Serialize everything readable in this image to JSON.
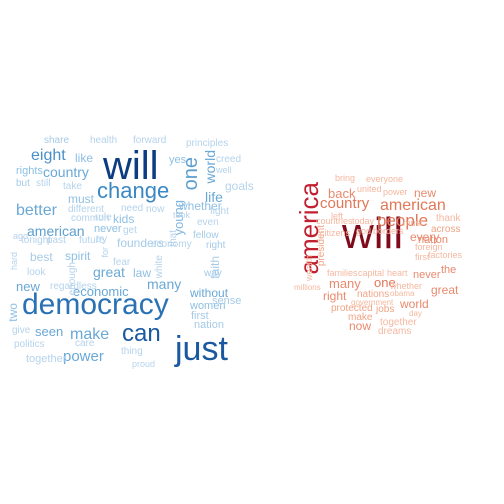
{
  "clouds": [
    {
      "name": "left",
      "words": [
        {
          "text": "will",
          "color": "#0c3d80",
          "rotate": false
        },
        {
          "text": "democracy",
          "color": "#2a72b4",
          "rotate": false
        },
        {
          "text": "just",
          "color": "#1a59a0",
          "rotate": false
        },
        {
          "text": "can",
          "color": "#1a59a0",
          "rotate": false
        },
        {
          "text": "change",
          "color": "#3a88c4",
          "rotate": false
        },
        {
          "text": "one",
          "color": "#5d9fcf",
          "rotate": true
        },
        {
          "text": "eight",
          "color": "#4a90c8",
          "rotate": false
        },
        {
          "text": "country",
          "color": "#6aa8d6",
          "rotate": false
        },
        {
          "text": "better",
          "color": "#6aa8d6",
          "rotate": false
        },
        {
          "text": "make",
          "color": "#6aa8d6",
          "rotate": false
        },
        {
          "text": "power",
          "color": "#6aa8d6",
          "rotate": false
        },
        {
          "text": "american",
          "color": "#5d9fcf",
          "rotate": false
        },
        {
          "text": "great",
          "color": "#6aa8d6",
          "rotate": false
        },
        {
          "text": "many",
          "color": "#6aa8d6",
          "rotate": false
        },
        {
          "text": "world",
          "color": "#6aa8d6",
          "rotate": true
        },
        {
          "text": "life",
          "color": "#6aa8d6",
          "rotate": false
        },
        {
          "text": "young",
          "color": "#7fb6df",
          "rotate": true
        },
        {
          "text": "without",
          "color": "#6aa8d6",
          "rotate": false
        },
        {
          "text": "economic",
          "color": "#6aa8d6",
          "rotate": false
        },
        {
          "text": "new",
          "color": "#6aa8d6",
          "rotate": false
        },
        {
          "text": "seen",
          "color": "#6aa8d6",
          "rotate": false
        },
        {
          "text": "two",
          "color": "#8fc0e3",
          "rotate": true
        },
        {
          "text": "like",
          "color": "#8fc0e3",
          "rotate": false
        },
        {
          "text": "must",
          "color": "#8fc0e3",
          "rotate": false
        },
        {
          "text": "rights",
          "color": "#8fc0e3",
          "rotate": false
        },
        {
          "text": "best",
          "color": "#a6cbe8",
          "rotate": false
        },
        {
          "text": "spirit",
          "color": "#8fc0e3",
          "rotate": false
        },
        {
          "text": "never",
          "color": "#8fc0e3",
          "rotate": false
        },
        {
          "text": "kids",
          "color": "#8fc0e3",
          "rotate": false
        },
        {
          "text": "whether",
          "color": "#8fc0e3",
          "rotate": false
        },
        {
          "text": "yes",
          "color": "#8fc0e3",
          "rotate": false
        },
        {
          "text": "faith",
          "color": "#a6cbe8",
          "rotate": true
        },
        {
          "text": "law",
          "color": "#8fc0e3",
          "rotate": false
        },
        {
          "text": "women",
          "color": "#8fc0e3",
          "rotate": false
        },
        {
          "text": "first",
          "color": "#a6cbe8",
          "rotate": false
        },
        {
          "text": "nation",
          "color": "#a6cbe8",
          "rotate": false
        },
        {
          "text": "sense",
          "color": "#a6cbe8",
          "rotate": false
        },
        {
          "text": "way",
          "color": "#a6cbe8",
          "rotate": false
        },
        {
          "text": "right",
          "color": "#a6cbe8",
          "rotate": false
        },
        {
          "text": "fellow",
          "color": "#a6cbe8",
          "rotate": false
        },
        {
          "text": "founders",
          "color": "#a6cbe8",
          "rotate": false
        },
        {
          "text": "share",
          "color": "#a6cbe8",
          "rotate": false
        },
        {
          "text": "health",
          "color": "#b5d3ec",
          "rotate": false
        },
        {
          "text": "forward",
          "color": "#b5d3ec",
          "rotate": false
        },
        {
          "text": "principles",
          "color": "#b5d3ec",
          "rotate": false
        },
        {
          "text": "creed",
          "color": "#b5d3ec",
          "rotate": false
        },
        {
          "text": "well",
          "color": "#b5d3ec",
          "rotate": false
        },
        {
          "text": "goals",
          "color": "#b5d3ec",
          "rotate": false
        },
        {
          "text": "but",
          "color": "#a6cbe8",
          "rotate": false
        },
        {
          "text": "still",
          "color": "#b5d3ec",
          "rotate": false
        },
        {
          "text": "take",
          "color": "#b5d3ec",
          "rotate": false
        },
        {
          "text": "need",
          "color": "#b5d3ec",
          "rotate": false
        },
        {
          "text": "now",
          "color": "#b5d3ec",
          "rotate": false
        },
        {
          "text": "took",
          "color": "#b5d3ec",
          "rotate": false
        },
        {
          "text": "fight",
          "color": "#b5d3ec",
          "rotate": false
        },
        {
          "text": "even",
          "color": "#b5d3ec",
          "rotate": false
        },
        {
          "text": "different",
          "color": "#b5d3ec",
          "rotate": false
        },
        {
          "text": "common",
          "color": "#b5d3ec",
          "rotate": false
        },
        {
          "text": "rule",
          "color": "#b5d3ec",
          "rotate": false
        },
        {
          "text": "get",
          "color": "#b5d3ec",
          "rotate": false
        },
        {
          "text": "tonight",
          "color": "#b5d3ec",
          "rotate": false
        },
        {
          "text": "past",
          "color": "#b5d3ec",
          "rotate": false
        },
        {
          "text": "future",
          "color": "#b5d3ec",
          "rotate": false
        },
        {
          "text": "try",
          "color": "#b5d3ec",
          "rotate": false
        },
        {
          "text": "ago",
          "color": "#b5d3ec",
          "rotate": false
        },
        {
          "text": "hard",
          "color": "#b5d3ec",
          "rotate": true
        },
        {
          "text": "for",
          "color": "#b5d3ec",
          "rotate": true
        },
        {
          "text": "economy",
          "color": "#b5d3ec",
          "rotate": false
        },
        {
          "text": "white",
          "color": "#b5d3ec",
          "rotate": true
        },
        {
          "text": "that",
          "color": "#b5d3ec",
          "rotate": true
        },
        {
          "text": "enough",
          "color": "#b5d3ec",
          "rotate": true
        },
        {
          "text": "fear",
          "color": "#b5d3ec",
          "rotate": false
        },
        {
          "text": "look",
          "color": "#b5d3ec",
          "rotate": false
        },
        {
          "text": "regardless",
          "color": "#b5d3ec",
          "rotate": false
        },
        {
          "text": "give",
          "color": "#b5d3ec",
          "rotate": false
        },
        {
          "text": "care",
          "color": "#b5d3ec",
          "rotate": false
        },
        {
          "text": "politics",
          "color": "#b5d3ec",
          "rotate": false
        },
        {
          "text": "together",
          "color": "#b5d3ec",
          "rotate": false
        },
        {
          "text": "thing",
          "color": "#b5d3ec",
          "rotate": false
        },
        {
          "text": "proud",
          "color": "#b5d3ec",
          "rotate": false
        },
        {
          "text": "freedom",
          "color": "#b5d3ec",
          "rotate": false
        }
      ]
    },
    {
      "name": "right",
      "words": [
        {
          "text": "will",
          "color": "#7f0a1c",
          "rotate": false
        },
        {
          "text": "america",
          "color": "#c02030",
          "rotate": true
        },
        {
          "text": "people",
          "color": "#e0785a",
          "rotate": false
        },
        {
          "text": "american",
          "color": "#e0785a",
          "rotate": false
        },
        {
          "text": "country",
          "color": "#e0785a",
          "rotate": false
        },
        {
          "text": "president",
          "color": "#f0a487",
          "rotate": true
        },
        {
          "text": "back",
          "color": "#e88a6d",
          "rotate": false
        },
        {
          "text": "new",
          "color": "#e88a6d",
          "rotate": false
        },
        {
          "text": "one",
          "color": "#e0785a",
          "rotate": false
        },
        {
          "text": "many",
          "color": "#e88a6d",
          "rotate": false
        },
        {
          "text": "every",
          "color": "#e88a6d",
          "rotate": false
        },
        {
          "text": "nation",
          "color": "#e88a6d",
          "rotate": false
        },
        {
          "text": "never",
          "color": "#e88a6d",
          "rotate": false
        },
        {
          "text": "world",
          "color": "#e88a6d",
          "rotate": false
        },
        {
          "text": "great",
          "color": "#e88a6d",
          "rotate": false
        },
        {
          "text": "the",
          "color": "#e88a6d",
          "rotate": false
        },
        {
          "text": "right",
          "color": "#e88a6d",
          "rotate": false
        },
        {
          "text": "now",
          "color": "#e88a6d",
          "rotate": false
        },
        {
          "text": "across",
          "color": "#f0a487",
          "rotate": false
        },
        {
          "text": "nations",
          "color": "#f0a487",
          "rotate": false
        },
        {
          "text": "protected",
          "color": "#f0a487",
          "rotate": false
        },
        {
          "text": "jobs",
          "color": "#f0a487",
          "rotate": false
        },
        {
          "text": "make",
          "color": "#f0a487",
          "rotate": false
        },
        {
          "text": "together",
          "color": "#f5b8a0",
          "rotate": false
        },
        {
          "text": "dreams",
          "color": "#f5b8a0",
          "rotate": false
        },
        {
          "text": "bring",
          "color": "#f5b8a0",
          "rotate": false
        },
        {
          "text": "everyone",
          "color": "#f5b8a0",
          "rotate": false
        },
        {
          "text": "united",
          "color": "#f5b8a0",
          "rotate": false
        },
        {
          "text": "power",
          "color": "#f5b8a0",
          "rotate": false
        },
        {
          "text": "left",
          "color": "#f5b8a0",
          "rotate": false
        },
        {
          "text": "countries",
          "color": "#f5b8a0",
          "rotate": false
        },
        {
          "text": "today",
          "color": "#f5b8a0",
          "rotate": false
        },
        {
          "text": "citizens",
          "color": "#f5b8a0",
          "rotate": false
        },
        {
          "text": "god",
          "color": "#f5b8a0",
          "rotate": false
        },
        {
          "text": "borders",
          "color": "#f5b8a0",
          "rotate": false
        },
        {
          "text": "must",
          "color": "#f5b8a0",
          "rotate": false
        },
        {
          "text": "thank",
          "color": "#f5b8a0",
          "rotate": false
        },
        {
          "text": "foreign",
          "color": "#f5b8a0",
          "rotate": false
        },
        {
          "text": "first",
          "color": "#f5b8a0",
          "rotate": false
        },
        {
          "text": "factories",
          "color": "#f5b8a0",
          "rotate": false
        },
        {
          "text": "families",
          "color": "#f5b8a0",
          "rotate": false
        },
        {
          "text": "capital",
          "color": "#f5b8a0",
          "rotate": false
        },
        {
          "text": "heart",
          "color": "#f5b8a0",
          "rotate": false
        },
        {
          "text": "whether",
          "color": "#f5b8a0",
          "rotate": false
        },
        {
          "text": "wealth",
          "color": "#f5b8a0",
          "rotate": true
        },
        {
          "text": "millions",
          "color": "#f5b8a0",
          "rotate": false
        },
        {
          "text": "government",
          "color": "#f5b8a0",
          "rotate": false
        },
        {
          "text": "obama",
          "color": "#f5b8a0",
          "rotate": false
        },
        {
          "text": "day",
          "color": "#f5b8a0",
          "rotate": false
        }
      ]
    }
  ]
}
